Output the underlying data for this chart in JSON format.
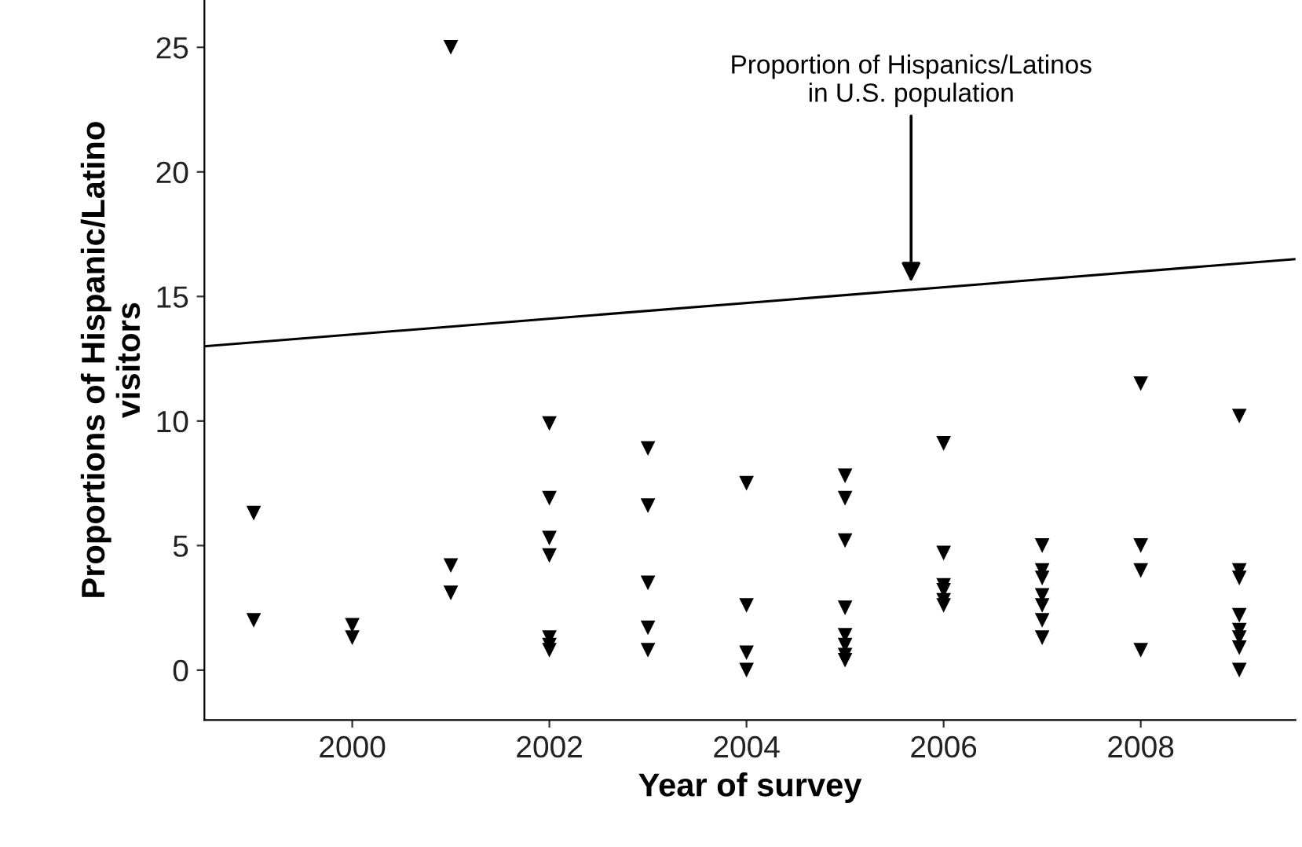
{
  "chart_data": {
    "type": "scatter",
    "xlabel": "Year of survey",
    "ylabel": "Proportions of Hispanic/Latino\nvisitors",
    "xlim": [
      1998.5,
      2009.57
    ],
    "xticks": [
      2000,
      2002,
      2004,
      2006,
      2008
    ],
    "ylim": [
      -2,
      26.9
    ],
    "yticks": [
      0,
      5,
      10,
      15,
      20,
      25
    ],
    "marker": "triangle",
    "grid": false,
    "legend": false,
    "series": [
      {
        "color": "#000000",
        "x": [
          1999,
          1999,
          2000,
          2000,
          2001,
          2001,
          2001,
          2002,
          2002,
          2002,
          2002,
          2002,
          2002,
          2002,
          2003,
          2003,
          2003,
          2003,
          2003,
          2004,
          2004,
          2004,
          2004,
          2005,
          2005,
          2005,
          2005,
          2005,
          2005,
          2005,
          2005,
          2006,
          2006,
          2006,
          2006,
          2006,
          2006,
          2007,
          2007,
          2007,
          2007,
          2007,
          2007,
          2007,
          2008,
          2008,
          2008,
          2008,
          2009,
          2009,
          2009,
          2009,
          2009,
          2009,
          2009,
          2009
        ],
        "values": [
          6.3,
          2.0,
          1.8,
          1.3,
          25.0,
          4.2,
          3.1,
          9.9,
          6.9,
          5.3,
          4.6,
          1.3,
          1.0,
          0.8,
          8.9,
          6.6,
          3.5,
          1.7,
          0.8,
          7.5,
          2.6,
          0.7,
          0.0,
          7.8,
          6.9,
          5.2,
          2.5,
          1.4,
          1.0,
          0.6,
          0.4,
          9.1,
          4.7,
          3.4,
          3.2,
          2.8,
          2.6,
          5.0,
          4.0,
          3.7,
          3.0,
          2.6,
          2.0,
          1.3,
          11.5,
          5.0,
          4.0,
          0.8,
          10.2,
          4.0,
          3.7,
          2.2,
          1.6,
          1.3,
          0.9,
          0.0
        ]
      },
      {
        "type": "line",
        "color": "#000000",
        "marker": "none",
        "x": [
          1998.5,
          2009.57
        ],
        "values": [
          13.0,
          16.5
        ]
      }
    ],
    "annotations": [
      {
        "text": "Proportion of Hispanics/Latinos\nin U.S. population",
        "x": 2005.67,
        "y": 15.4
      }
    ]
  }
}
